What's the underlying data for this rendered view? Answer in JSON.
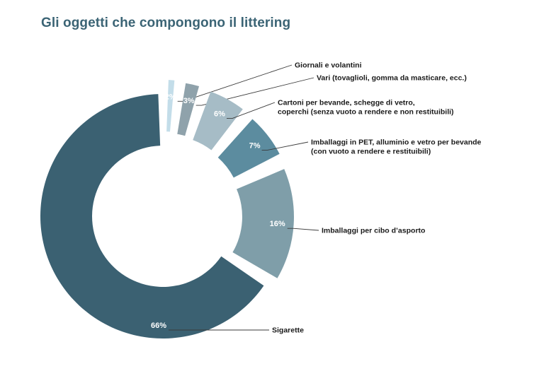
{
  "title": "Gli oggetti che compongono il littering",
  "chart_data": {
    "type": "pie",
    "variant": "donut",
    "title": "Gli oggetti che compongono il littering",
    "slices": [
      {
        "value": 2,
        "pct_label": "2%",
        "label_lines": [
          "Giornali e volantini"
        ],
        "color": "#c3dde9"
      },
      {
        "value": 3,
        "pct_label": "3%",
        "label_lines": [
          "Vari (tovaglioli, gomma da masticare, ecc.)"
        ],
        "color": "#8fa2ab"
      },
      {
        "value": 6,
        "pct_label": "6%",
        "label_lines": [
          "Cartoni per bevande, schegge di vetro,",
          "coperchi (senza vuoto a rendere e non restituibili)"
        ],
        "color": "#a6bcc6"
      },
      {
        "value": 7,
        "pct_label": "7%",
        "label_lines": [
          "Imballaggi in PET, alluminio e vetro per bevande",
          "(con vuoto a rendere e restituibili)"
        ],
        "color": "#5c8c9f"
      },
      {
        "value": 16,
        "pct_label": "16%",
        "label_lines": [
          "Imballaggi per cibo d’asporto"
        ],
        "color": "#7f9ea9"
      },
      {
        "value": 66,
        "pct_label": "66%",
        "label_lines": [
          "Sigarette"
        ],
        "color": "#3b6172"
      }
    ]
  }
}
